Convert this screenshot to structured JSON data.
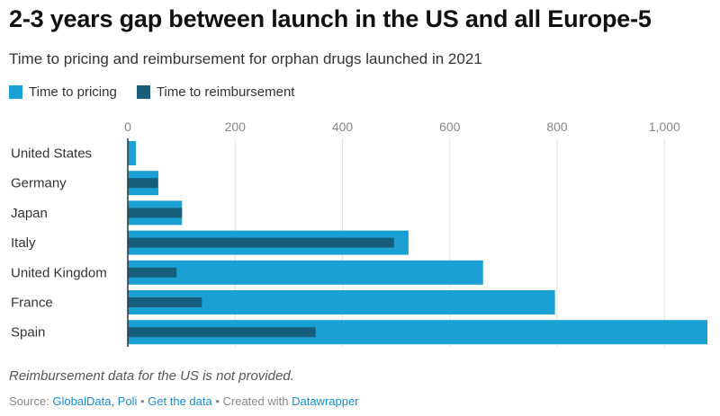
{
  "header": {
    "title": "2-3 years gap between launch in the US and all Europe-5",
    "subtitle": "Time to pricing and reimbursement for orphan drugs launched in 2021"
  },
  "colors": {
    "pricing": "#1aa0d2",
    "reimbursement": "#175e7a",
    "grid": "#e2e2e2",
    "axis": "#333333"
  },
  "chart_data": {
    "type": "bar",
    "orientation": "horizontal",
    "title": "2-3 years gap between launch in the US and all Europe-5",
    "subtitle": "Time to pricing and reimbursement for orphan drugs launched in 2021",
    "categories": [
      "United States",
      "Germany",
      "Japan",
      "Italy",
      "United Kingdom",
      "France",
      "Spain"
    ],
    "series": [
      {
        "name": "Time to pricing",
        "values": [
          15,
          57,
          101,
          523,
          662,
          796,
          1080
        ]
      },
      {
        "name": "Time to reimbursement",
        "values": [
          null,
          56,
          101,
          496,
          91,
          138,
          350
        ]
      }
    ],
    "xlim": [
      0,
      1080
    ],
    "ticks": [
      0,
      200,
      400,
      600,
      800,
      1000
    ],
    "tick_labels": [
      "0",
      "200",
      "400",
      "600",
      "800",
      "1,000"
    ],
    "xlabel": "",
    "ylabel": "",
    "grid": true,
    "legend": "top-left"
  },
  "legend": {
    "pricing_label": "Time to pricing",
    "reimbursement_label": "Time to reimbursement"
  },
  "footer": {
    "note": "Reimbursement data for the US is not provided.",
    "source_prefix": "Source: ",
    "source_link": "GlobalData, Poli",
    "separator1": " • ",
    "get_data": "Get the data",
    "separator2": " • Created with ",
    "datawrapper": "Datawrapper"
  }
}
